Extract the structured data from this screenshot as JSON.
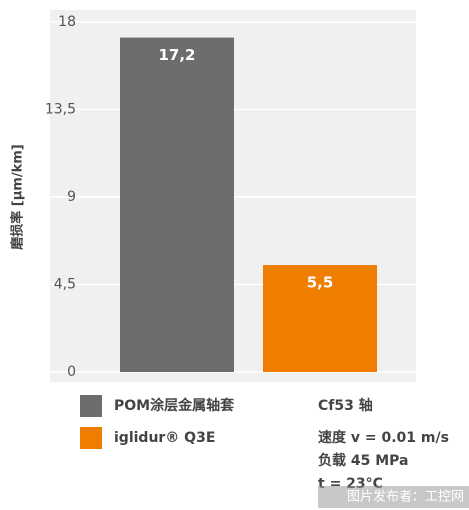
{
  "chart_data": {
    "type": "bar",
    "y_label": "磨损率 [µm/km]",
    "categories": [
      null
    ],
    "series": [
      {
        "name": "POM涂层金属轴套",
        "color": "#6d6d6d",
        "values": [
          17.2
        ],
        "value_labels": [
          "17,2"
        ]
      },
      {
        "name": "iglidur® Q3E",
        "color": "#ef7d00",
        "values": [
          5.5
        ],
        "value_labels": [
          "5,5"
        ]
      }
    ],
    "ylim": [
      0,
      18
    ],
    "yticks": [
      0,
      {
        "value": 4.5,
        "label": "4,5"
      },
      9,
      {
        "value": 13.5,
        "label": "13,5"
      },
      18
    ],
    "grid": true,
    "annotations": [
      "Cf53 轴",
      "速度 v = 0.01 m/s",
      "负载 45 MPa",
      "t = 23°C"
    ],
    "watermark": "图片发布者：工控网"
  }
}
